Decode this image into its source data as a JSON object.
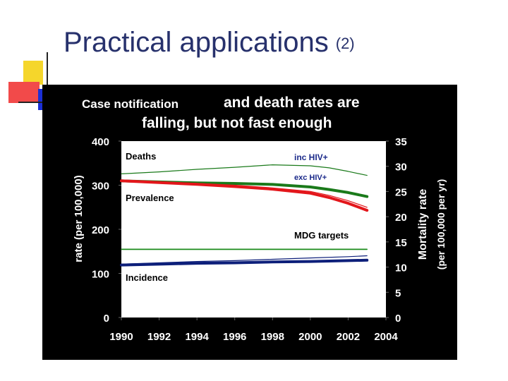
{
  "slide": {
    "title": "Practical applications",
    "title_suffix": "(2)"
  },
  "colors": {
    "title": "#27316c",
    "deaths_inc_hiv": "#1a7a1a",
    "deaths_exc_hiv": "#1a7a1a",
    "prevalence": "#e3161b",
    "incidence": "#0d1f7a",
    "targets": "#1a8a1a"
  },
  "chart_data": {
    "type": "line",
    "title_line1_part1": "Case notification",
    "title_line1_part2": "and death rates are",
    "title_line2": "falling, but not fast enough",
    "ylabel_left": "rate (per 100,000)",
    "ylabel_right_1": "Mortality rate",
    "ylabel_right_2": "(per 100,000 per yr)",
    "ylim_left": [
      0,
      400
    ],
    "ylim_right": [
      0,
      35
    ],
    "xlim": [
      1990,
      2004
    ],
    "x_ticks": [
      1990,
      1992,
      1994,
      1996,
      1998,
      2000,
      2002,
      2004
    ],
    "y_ticks_left": [
      0,
      100,
      200,
      300,
      400
    ],
    "y_ticks_right": [
      0,
      5,
      10,
      15,
      20,
      25,
      30,
      35
    ],
    "labels": {
      "deaths": "Deaths",
      "inc_hiv": "inc HIV+",
      "exc_hiv": "exc HIV+",
      "prevalence": "Prevalence",
      "mdg_targets": "MDG targets",
      "incidence": "Incidence"
    },
    "series": [
      {
        "name": "Deaths inc HIV+",
        "axis": "right",
        "style": "thin",
        "x": [
          1990,
          1992,
          1994,
          1996,
          1998,
          2000,
          2001,
          2002,
          2003
        ],
        "values": [
          28.5,
          28.9,
          29.4,
          29.8,
          30.3,
          30.1,
          29.7,
          29.0,
          28.2
        ]
      },
      {
        "name": "Deaths exc HIV+",
        "axis": "right",
        "style": "thick",
        "x": [
          1990,
          1992,
          1994,
          1996,
          1998,
          2000,
          2001,
          2002,
          2003
        ],
        "values": [
          27.1,
          26.9,
          26.7,
          26.6,
          26.4,
          25.9,
          25.4,
          24.8,
          24.0
        ]
      },
      {
        "name": "Prevalence",
        "axis": "left",
        "style": "thick",
        "x": [
          1990,
          1992,
          1994,
          1996,
          1998,
          2000,
          2001,
          2002,
          2003
        ],
        "values": [
          310,
          306,
          302,
          297,
          291,
          282,
          272,
          259,
          243
        ]
      },
      {
        "name": "Prevalence (upper)",
        "axis": "left",
        "style": "thin",
        "x": [
          1990,
          1992,
          1994,
          1996,
          1998,
          2000,
          2001,
          2002,
          2003
        ],
        "values": [
          312,
          308,
          304,
          300,
          294,
          286,
          277,
          265,
          250
        ]
      },
      {
        "name": "Incidence",
        "axis": "left",
        "style": "thick",
        "x": [
          1990,
          1992,
          1994,
          1996,
          1998,
          2000,
          2002,
          2003
        ],
        "values": [
          119,
          121,
          123,
          124,
          126,
          127,
          129,
          130
        ]
      },
      {
        "name": "Incidence (upper)",
        "axis": "left",
        "style": "thin",
        "x": [
          1990,
          1992,
          1994,
          1996,
          1998,
          2000,
          2002,
          2003
        ],
        "values": [
          121,
          124,
          127,
          129,
          132,
          135,
          138,
          140
        ]
      },
      {
        "name": "Target prevalence",
        "axis": "left",
        "style": "target",
        "x": [
          1990,
          2003
        ],
        "values": [
          155,
          155
        ]
      },
      {
        "name": "Target deaths",
        "axis": "right",
        "style": "target",
        "x": [
          1990,
          2003
        ],
        "values": [
          13.5,
          13.5
        ]
      }
    ]
  }
}
